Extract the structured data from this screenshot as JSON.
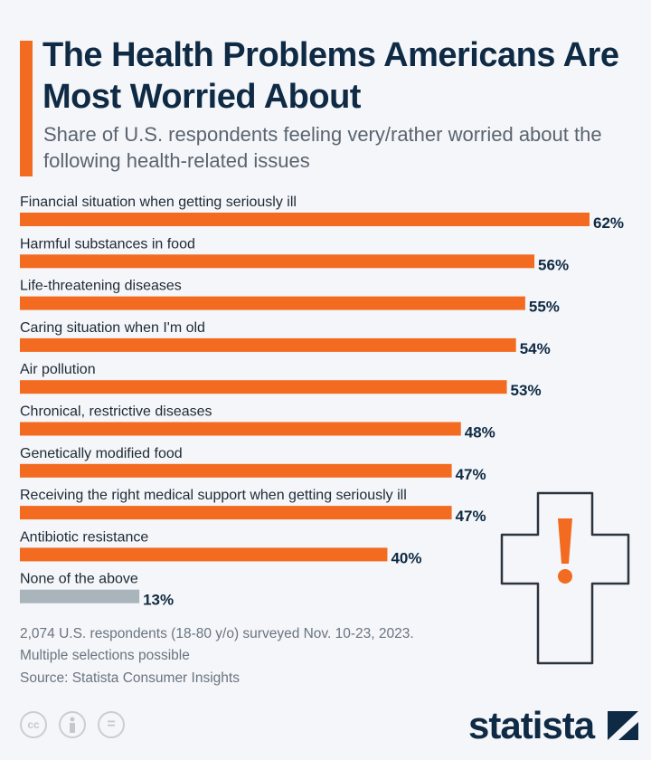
{
  "chart_data": {
    "type": "bar",
    "orientation": "horizontal",
    "title": "The Health Problems Americans Are Most Worried About",
    "subtitle": "Share of U.S. respondents feeling very/rather worried about the following health-related issues",
    "categories": [
      "Financial situation when getting seriously ill",
      "Harmful substances in food",
      "Life-threatening diseases",
      "Caring situation when I'm old",
      "Air pollution",
      "Chronical, restrictive diseases",
      "Genetically modified food",
      "Receiving the right medical support when getting seriously ill",
      "Antibiotic resistance",
      "None of the above"
    ],
    "values": [
      62,
      56,
      55,
      54,
      53,
      48,
      47,
      47,
      40,
      13
    ],
    "value_labels": [
      "62%",
      "56%",
      "55%",
      "54%",
      "53%",
      "48%",
      "47%",
      "47%",
      "40%",
      "13%"
    ],
    "xlim": [
      0,
      62
    ],
    "grid": false,
    "colors": {
      "bar": "#f26b21",
      "none_bar": "#a9b4bb",
      "text": "#0f2a44"
    }
  },
  "footer": {
    "note1": "2,074 U.S. respondents (18-80 y/o) surveyed Nov. 10-23, 2023.",
    "note2": "Multiple selections possible",
    "source": "Source: Statista Consumer Insights"
  },
  "license_icons": [
    "cc-icon",
    "attribution-icon",
    "no-derivatives-icon"
  ],
  "license_labels": {
    "cc": "cc",
    "nd": "="
  },
  "logo": "statista",
  "decoration": "medical-cross-exclamation-icon"
}
